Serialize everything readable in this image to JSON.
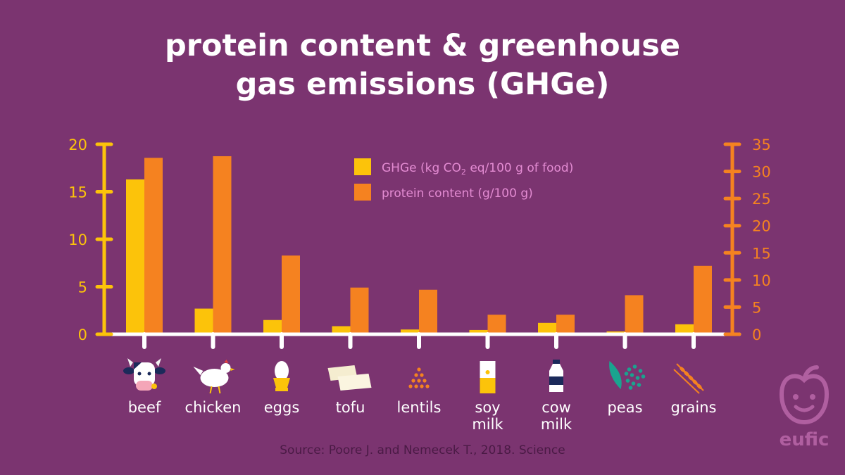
{
  "title_lines": [
    "protein content & greenhouse",
    "gas emissions (GHGe)"
  ],
  "source": "Source: Poore J. and Nemecek T., 2018. Science",
  "brand": "eufic",
  "colors": {
    "background": "#7b3470",
    "ghge": "#fcc30a",
    "protein": "#f58220",
    "axis": "#ffffff",
    "legend_text": "#e38bd2",
    "source_text": "#4a1a45"
  },
  "chart_data": {
    "type": "bar",
    "categories": [
      [
        "beef"
      ],
      [
        "chicken"
      ],
      [
        "eggs"
      ],
      [
        "tofu"
      ],
      [
        "lentils"
      ],
      [
        "soy",
        "milk"
      ],
      [
        "cow",
        "milk"
      ],
      [
        "peas"
      ],
      [
        "grains"
      ]
    ],
    "category_icons": [
      "cow-icon",
      "chicken-icon",
      "egg-icon",
      "tofu-icon",
      "lentils-icon",
      "soy-milk-carton-icon",
      "milk-bottle-icon",
      "peas-icon",
      "wheat-icon"
    ],
    "series": [
      {
        "name": "GHGe (kg CO₂ eq/100 g of food)",
        "axis": "left",
        "values": [
          16.3,
          2.7,
          1.5,
          0.85,
          0.5,
          0.45,
          1.2,
          0.3,
          1.05
        ]
      },
      {
        "name": "protein content (g/100 g)",
        "axis": "right",
        "values": [
          32.5,
          32.8,
          14.5,
          8.6,
          8.2,
          3.6,
          3.6,
          7.2,
          12.6
        ]
      }
    ],
    "y_left": {
      "min": 0,
      "max": 20,
      "ticks": [
        "0",
        "5",
        "10",
        "15",
        "20"
      ],
      "tick_values": [
        0,
        5,
        10,
        15,
        20
      ]
    },
    "y_right": {
      "min": 0,
      "max": 35,
      "ticks": [
        "0",
        "5",
        "10",
        "15",
        "20",
        "25",
        "30",
        "35"
      ],
      "tick_values": [
        0,
        5,
        10,
        15,
        20,
        25,
        30,
        35
      ]
    },
    "legend": {
      "position": "top-center",
      "items": [
        {
          "label_main": "GHGe (kg CO",
          "label_sub": "2",
          "label_rest": " eq/100 g of food)"
        },
        {
          "label_main": "protein content (g/100 g)",
          "label_sub": "",
          "label_rest": ""
        }
      ]
    },
    "grid": false
  }
}
